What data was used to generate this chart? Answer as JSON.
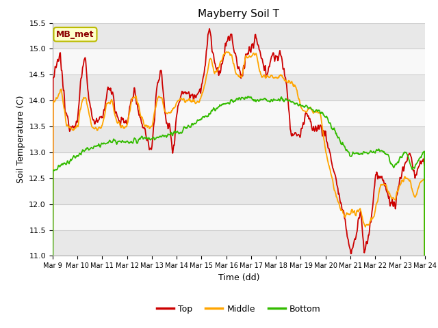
{
  "title": "Mayberry Soil T",
  "xlabel": "Time (dd)",
  "ylabel": "Soil Temperature (C)",
  "ylim": [
    11.0,
    15.5
  ],
  "legend_label": "MB_met",
  "legend_entries": [
    "Top",
    "Middle",
    "Bottom"
  ],
  "line_colors": [
    "#cc0000",
    "#ffa500",
    "#33bb00"
  ],
  "background_color": "#ffffff",
  "plot_bg_light": "#f0f0f0",
  "plot_bg_dark": "#ffffff",
  "grid_color": "#d0d0d0",
  "xtick_labels": [
    "Mar 9",
    "Mar 10",
    "Mar 11",
    "Mar 12",
    "Mar 13",
    "Mar 14",
    "Mar 15",
    "Mar 16",
    "Mar 17",
    "Mar 18",
    "Mar 19",
    "Mar 20",
    "Mar 21",
    "Mar 22",
    "Mar 23",
    "Mar 24"
  ],
  "ytick_values": [
    11.0,
    11.5,
    12.0,
    12.5,
    13.0,
    13.5,
    14.0,
    14.5,
    15.0,
    15.5
  ],
  "figsize": [
    6.4,
    4.8
  ],
  "dpi": 100
}
